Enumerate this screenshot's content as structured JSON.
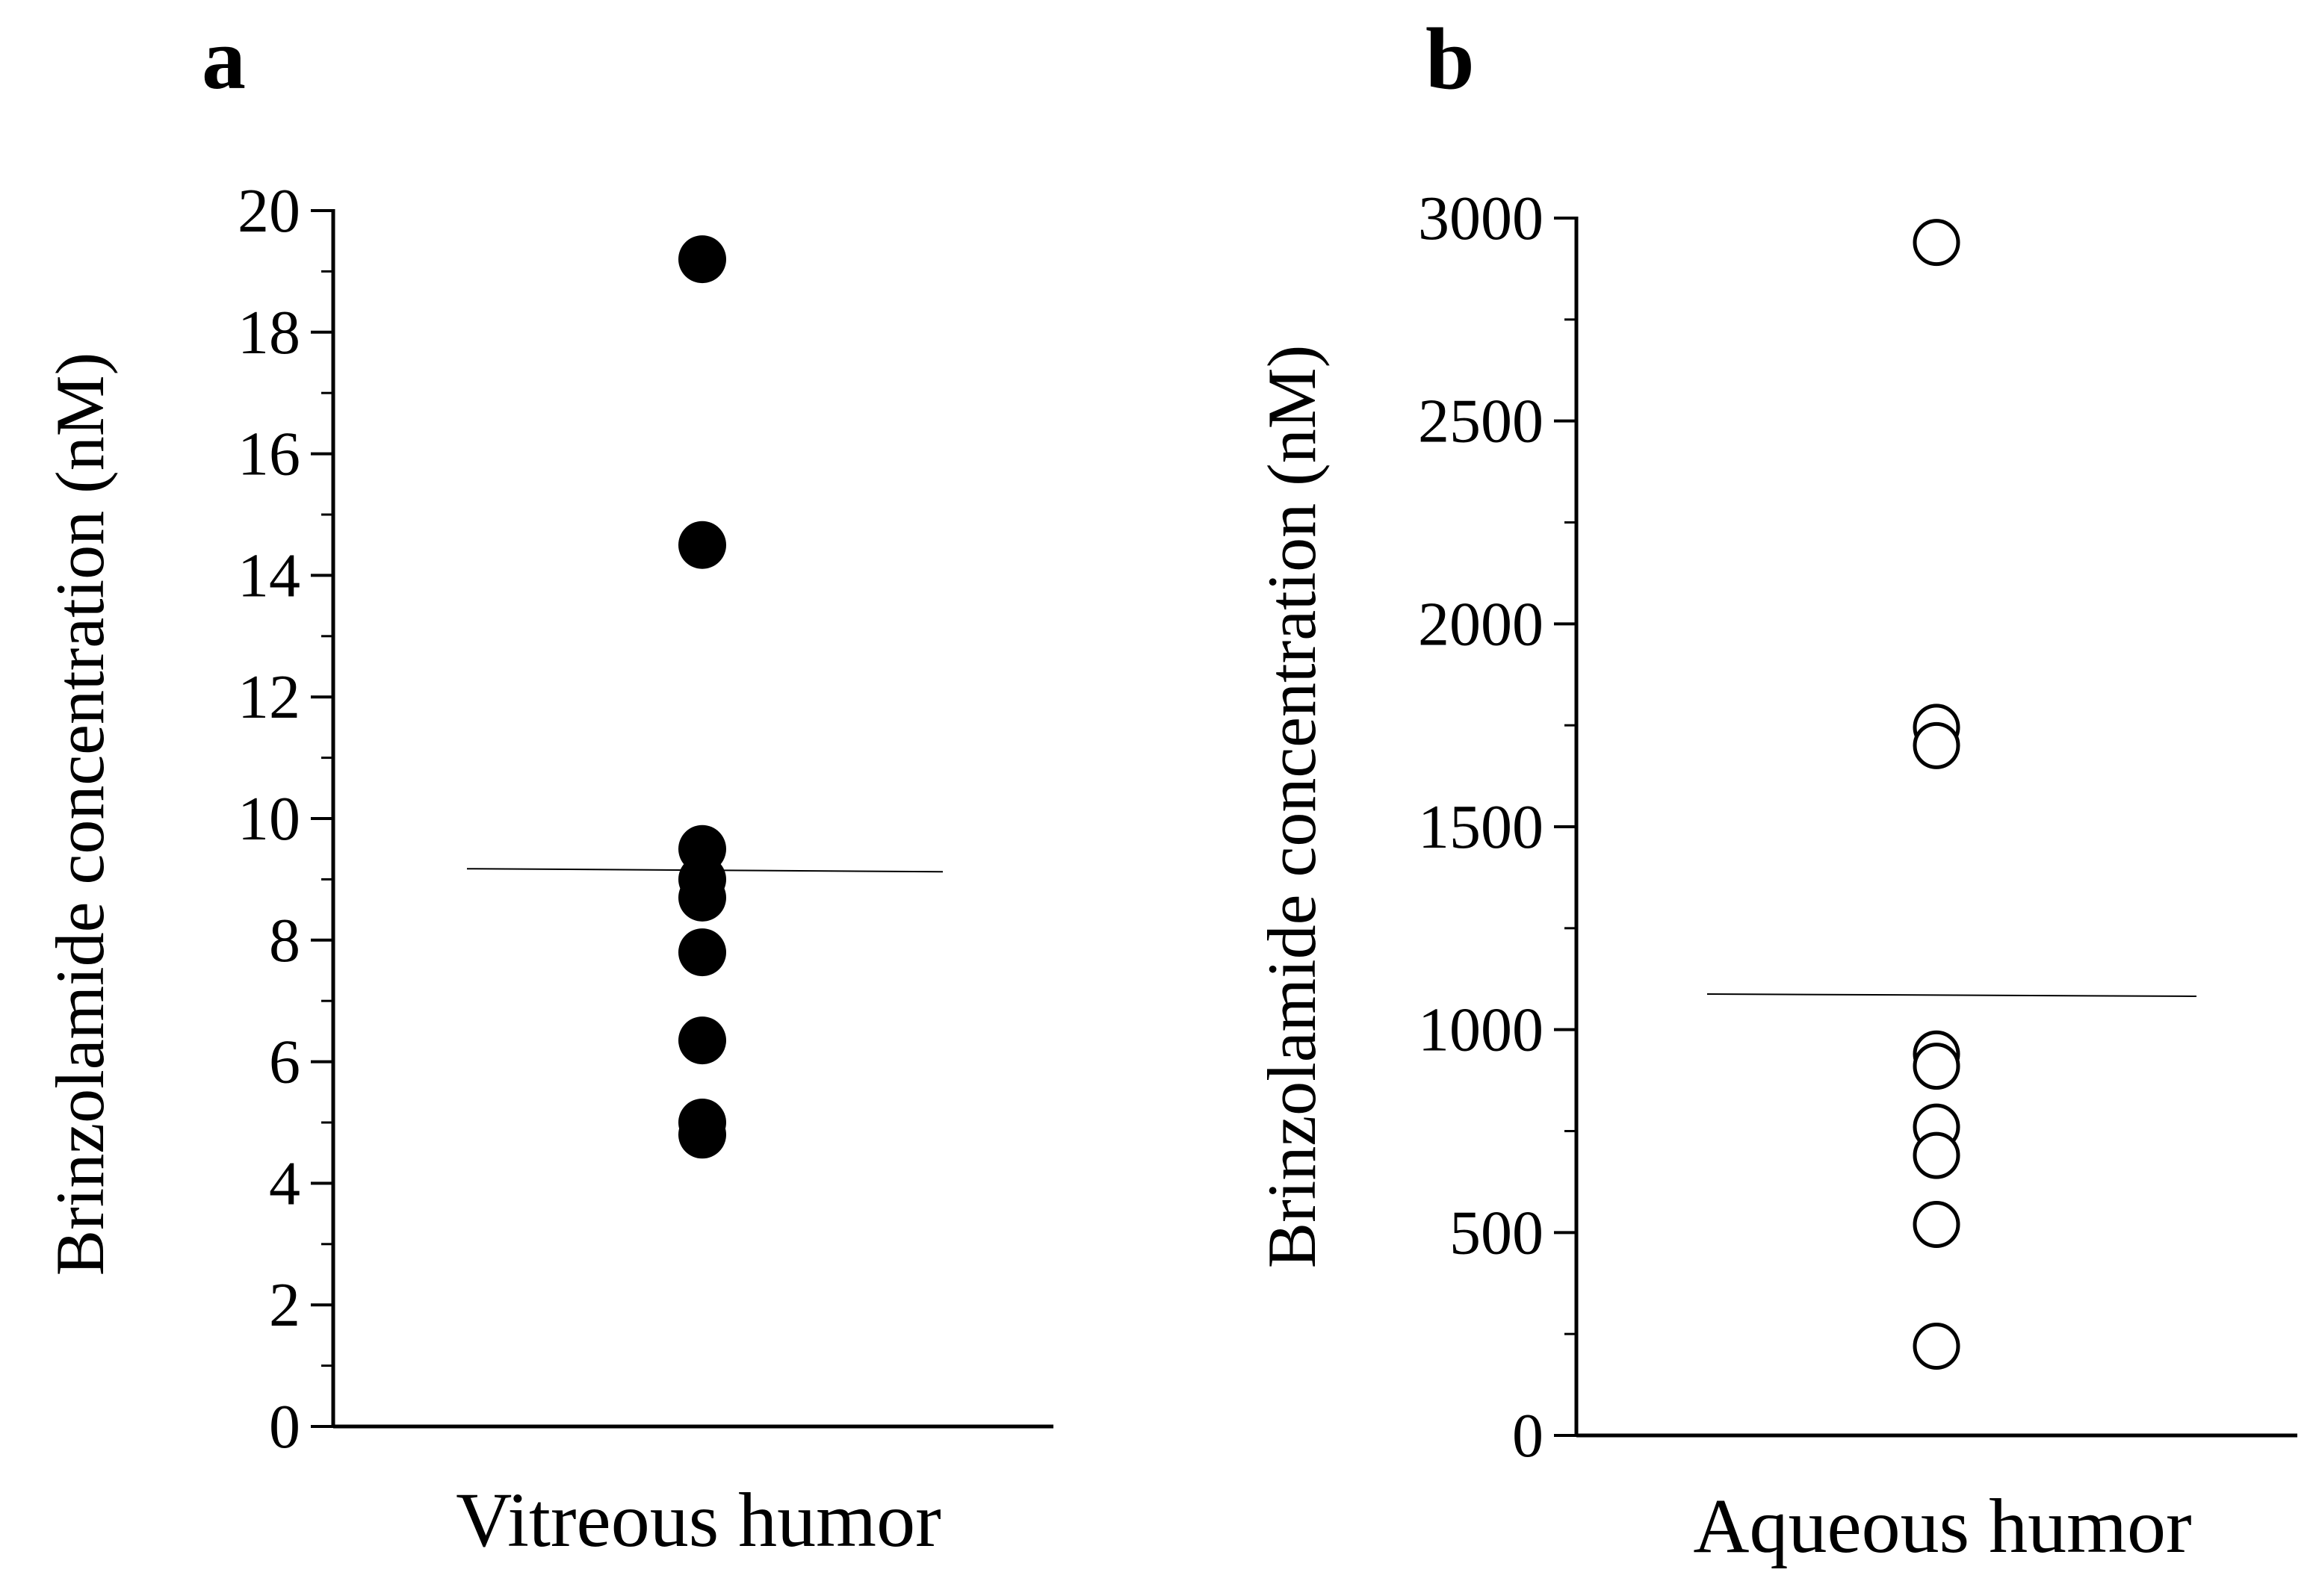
{
  "chart_data": [
    {
      "type": "scatter",
      "panel_label": "a",
      "ylabel": "Brinzolamide concentration (nM)",
      "xlabel": "Vitreous humor",
      "ylim": [
        0,
        20
      ],
      "yticks": [
        0,
        2,
        4,
        6,
        8,
        10,
        12,
        14,
        16,
        18,
        20
      ],
      "tick_labels": [
        "0",
        "2",
        "4",
        "6",
        "8",
        "10",
        "12",
        "14",
        "16",
        "18",
        "20"
      ],
      "marker": "filled-circle",
      "values": [
        19.2,
        14.5,
        9.5,
        9.0,
        8.7,
        7.8,
        6.35,
        5.0,
        4.8
      ],
      "mean_line": 9.15,
      "grid": false
    },
    {
      "type": "scatter",
      "panel_label": "b",
      "ylabel": "Brinzolamide concentration (nM)",
      "xlabel": "Aqueous humor",
      "ylim": [
        0,
        3000
      ],
      "yticks": [
        0,
        500,
        1000,
        1500,
        2000,
        2500,
        3000
      ],
      "tick_labels": [
        "0",
        "500",
        "1000",
        "1500",
        "2000",
        "2500",
        "3000"
      ],
      "marker": "open-circle",
      "values": [
        2940,
        1745,
        1700,
        940,
        910,
        760,
        690,
        520,
        220
      ],
      "mean_line": 1085,
      "grid": false
    }
  ]
}
